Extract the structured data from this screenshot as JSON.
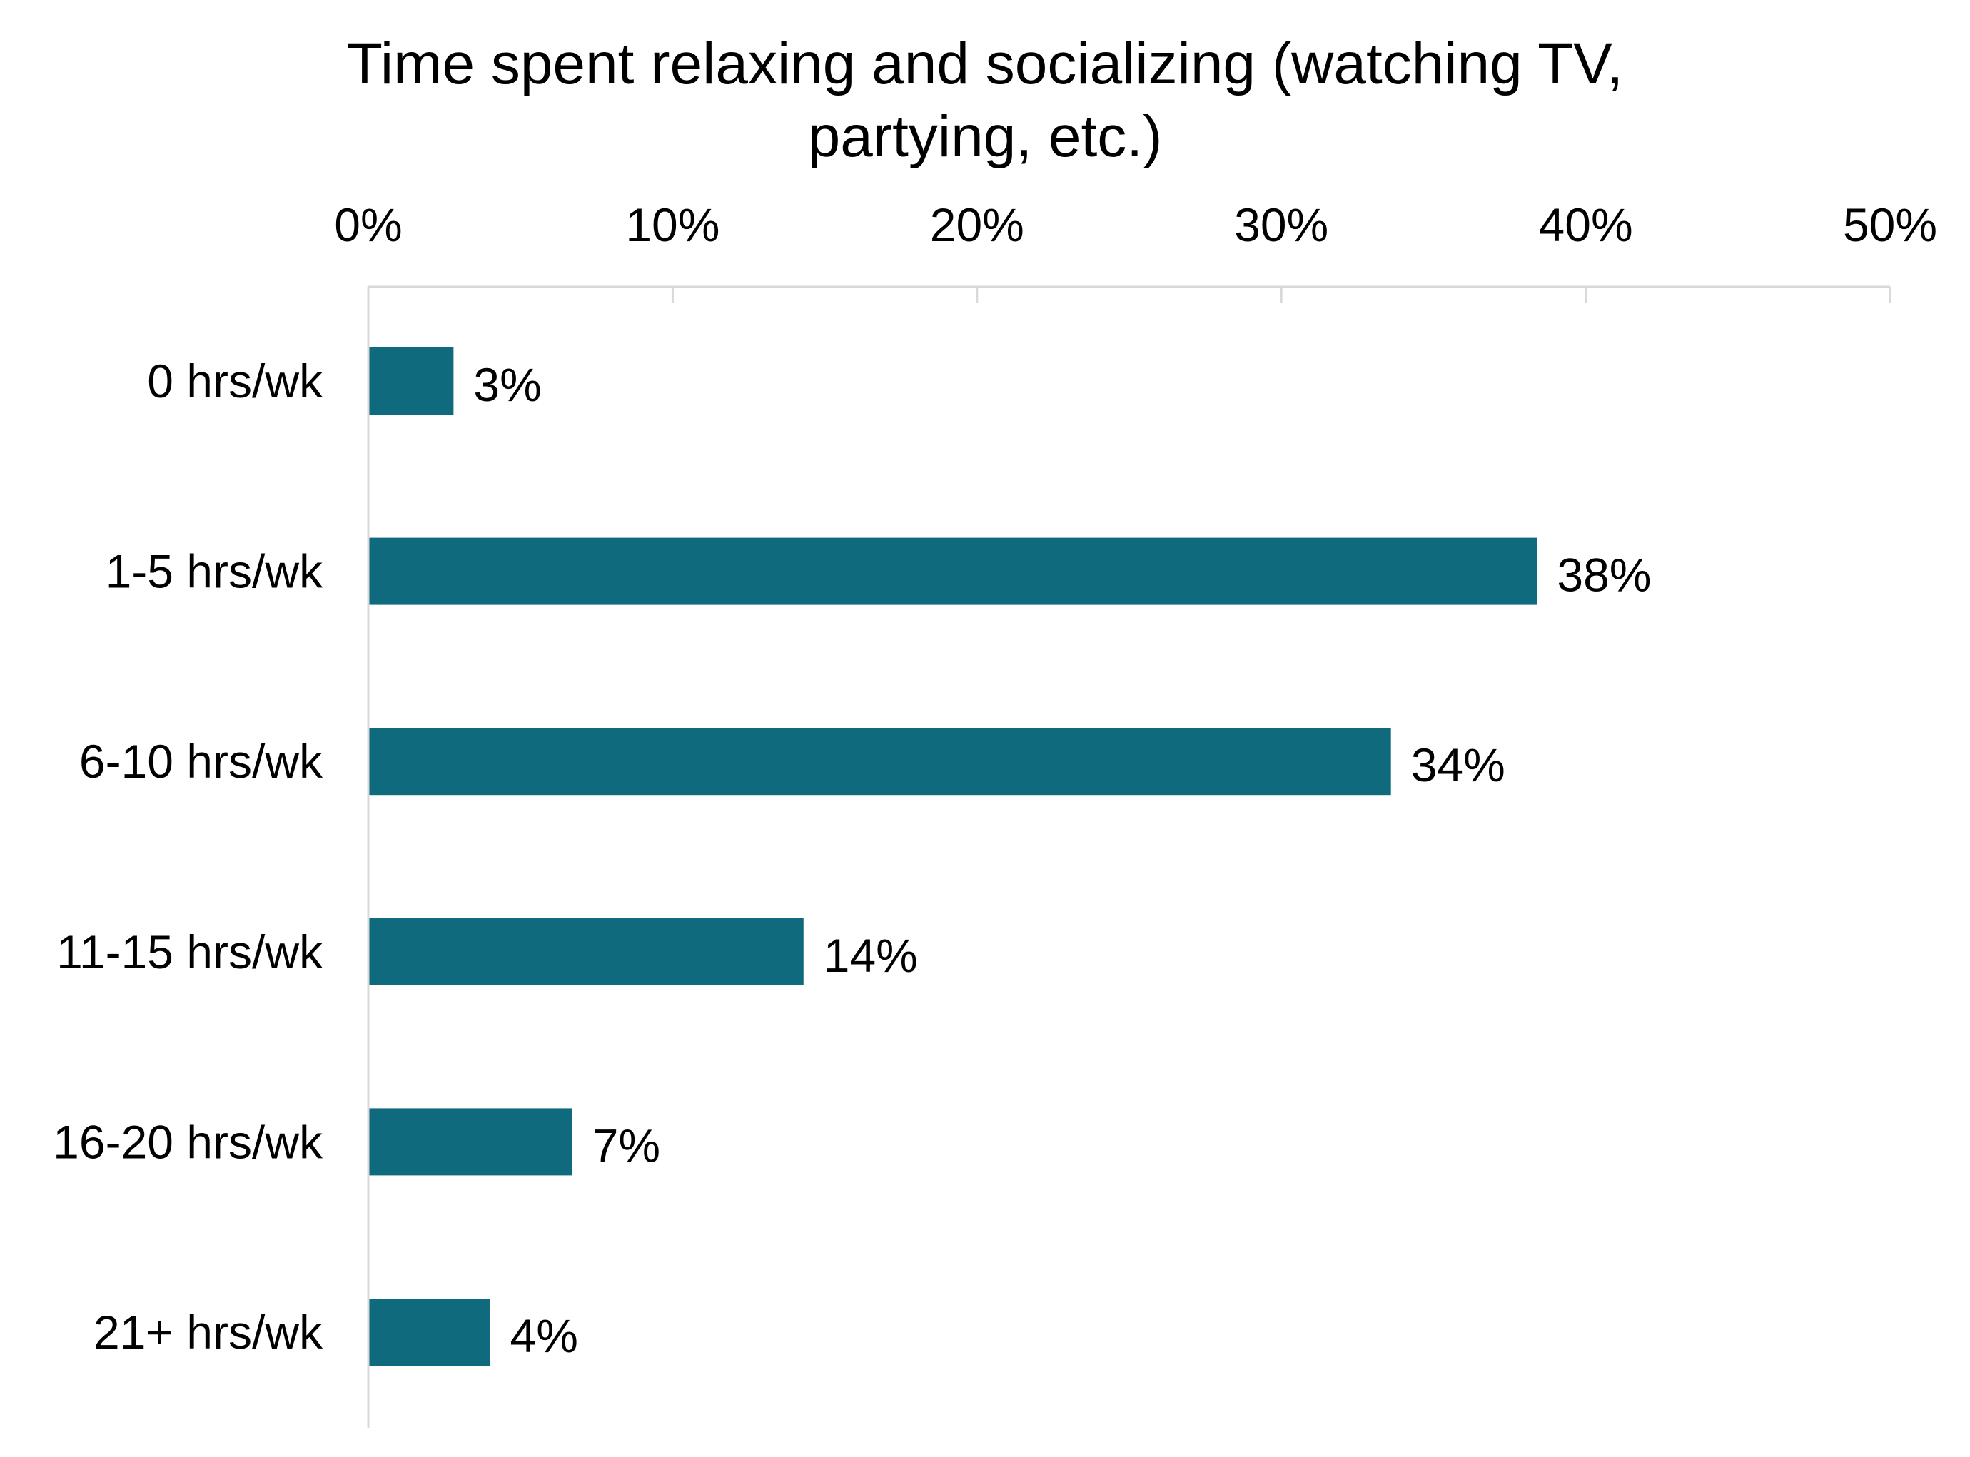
{
  "chart_data": {
    "type": "bar",
    "orientation": "horizontal",
    "title_lines": [
      "Time spent relaxing and socializing (watching TV,",
      "partying, etc.)"
    ],
    "categories": [
      "0 hrs/wk",
      "1-5 hrs/wk",
      "6-10 hrs/wk",
      "11-15 hrs/wk",
      "16-20 hrs/wk",
      "21+ hrs/wk"
    ],
    "values": [
      2.8,
      38.4,
      33.6,
      14.3,
      6.7,
      4.0
    ],
    "data_labels": [
      "3%",
      "38%",
      "34%",
      "14%",
      "7%",
      "4%"
    ],
    "xlim": [
      0,
      50
    ],
    "x_ticks": [
      0,
      10,
      20,
      30,
      40,
      50
    ],
    "x_tick_labels": [
      "0%",
      "10%",
      "20%",
      "30%",
      "40%",
      "50%"
    ],
    "x_axis_position": "top",
    "grid": false,
    "legend": "none",
    "bar_color": "#0f6a7e",
    "axis_color": "#d9d9d9"
  }
}
